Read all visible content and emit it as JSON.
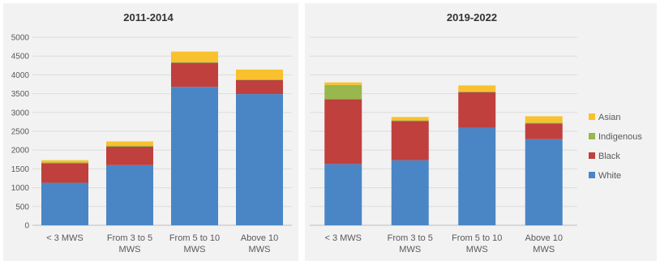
{
  "chart_data": [
    {
      "type": "bar",
      "stacked": true,
      "title": "2011-2014",
      "categories": [
        [
          "< 3 MWS"
        ],
        [
          "From 3 to 5",
          "MWS"
        ],
        [
          "From 5 to 10",
          "MWS"
        ],
        [
          "Above 10",
          "MWS"
        ]
      ],
      "ylim": [
        0,
        5000
      ],
      "yticks": [
        0,
        500,
        1000,
        1500,
        2000,
        2500,
        3000,
        3500,
        4000,
        4500,
        5000
      ],
      "series": [
        {
          "name": "White",
          "color": "#4a86c6",
          "values": [
            1130,
            1600,
            3680,
            3490
          ]
        },
        {
          "name": "Black",
          "color": "#c0403d",
          "values": [
            520,
            490,
            640,
            370
          ]
        },
        {
          "name": "Indigenous",
          "color": "#98b74d",
          "values": [
            20,
            30,
            20,
            20
          ]
        },
        {
          "name": "Asian",
          "color": "#f8c12d",
          "values": [
            60,
            110,
            280,
            260
          ]
        }
      ],
      "grid": true
    },
    {
      "type": "bar",
      "stacked": true,
      "title": "2019-2022",
      "categories": [
        [
          "< 3 MWS"
        ],
        [
          "From 3 to 5",
          "MWS"
        ],
        [
          "From 5 to 10",
          "MWS"
        ],
        [
          "Above 10",
          "MWS"
        ]
      ],
      "ylim": [
        0,
        5000
      ],
      "series": [
        {
          "name": "White",
          "color": "#4a86c6",
          "values": [
            1630,
            1730,
            2590,
            2290
          ]
        },
        {
          "name": "Black",
          "color": "#c0403d",
          "values": [
            1720,
            1040,
            950,
            420
          ]
        },
        {
          "name": "Indigenous",
          "color": "#98b74d",
          "values": [
            380,
            20,
            20,
            20
          ]
        },
        {
          "name": "Asian",
          "color": "#f8c12d",
          "values": [
            70,
            90,
            160,
            170
          ]
        }
      ],
      "grid": true
    }
  ],
  "legend": {
    "position": "right",
    "entries": [
      {
        "name": "Asian",
        "color": "#f8c12d"
      },
      {
        "name": "Indigenous",
        "color": "#98b74d"
      },
      {
        "name": "Black",
        "color": "#c0403d"
      },
      {
        "name": "White",
        "color": "#4a86c6"
      }
    ]
  }
}
